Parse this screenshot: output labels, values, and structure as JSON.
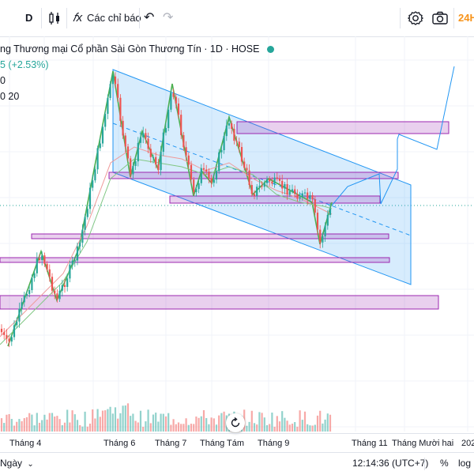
{
  "toolbar": {
    "interval": "D",
    "indicators_label": "Các chỉ báo",
    "right_label": "24H"
  },
  "legend": {
    "title": "ng Thương mại Cổ phần Sài Gòn Thương Tín · 1D · HOSE",
    "change": "5 (+2.53%)",
    "row3": "0",
    "row4": "0 20"
  },
  "x_axis_labels": [
    "Tháng 4",
    "Tháng 6",
    "Tháng 7",
    "Tháng Tám",
    "Tháng 9",
    "Tháng 11",
    "Tháng Mười hai",
    "202"
  ],
  "bottom_bar": {
    "range_label": "Ngày",
    "clock": "12:14:36 (UTC+7)",
    "percent": "%",
    "log": "log"
  },
  "colors": {
    "up": "#26a69a",
    "down": "#ef5350",
    "channel": "#2196f3",
    "zone": "#9c27b0",
    "zigzag": "#4caf50"
  }
}
